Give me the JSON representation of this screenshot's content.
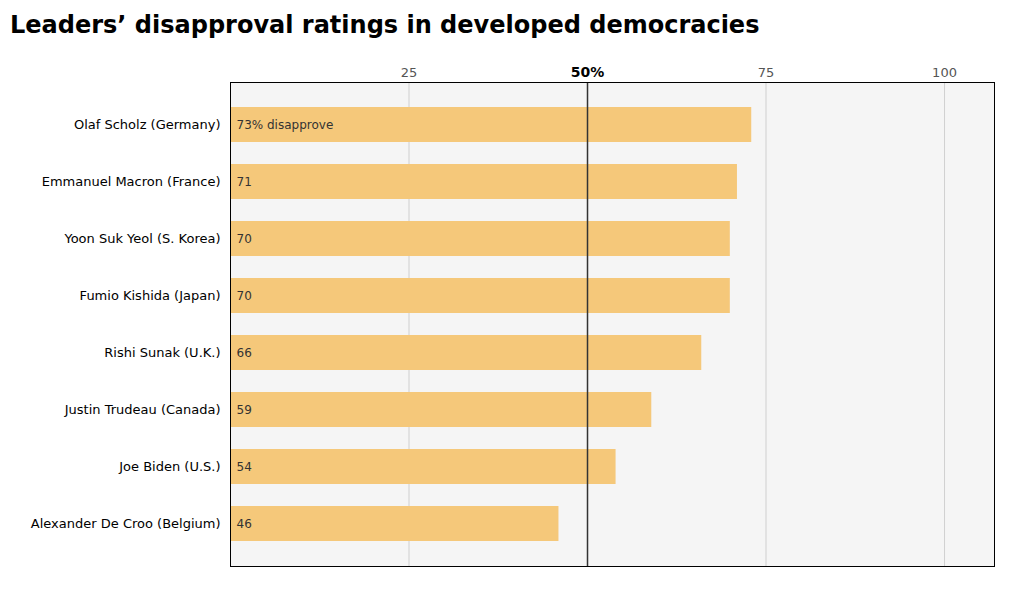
{
  "chart_data": {
    "type": "bar",
    "orientation": "horizontal",
    "title": "Leaders’ disapproval ratings in developed democracies",
    "categories": [
      "Olaf Scholz (Germany)",
      "Emmanuel Macron (France)",
      "Yoon Suk Yeol (S. Korea)",
      "Fumio Kishida (Japan)",
      "Rishi Sunak (U.K.)",
      "Justin Trudeau (Canada)",
      "Joe Biden (U.S.)",
      "Alexander De Croo (Belgium)"
    ],
    "values": [
      73,
      71,
      70,
      70,
      66,
      59,
      54,
      46
    ],
    "value_labels": [
      "73% disapprove",
      "71",
      "70",
      "70",
      "66",
      "59",
      "54",
      "46"
    ],
    "data_labels": true,
    "color": "#F5C87A",
    "xlim": [
      0,
      107
    ],
    "xticks": [
      25,
      {
        "value": 50,
        "label": "50%"
      },
      75,
      100
    ],
    "grid": true
  }
}
